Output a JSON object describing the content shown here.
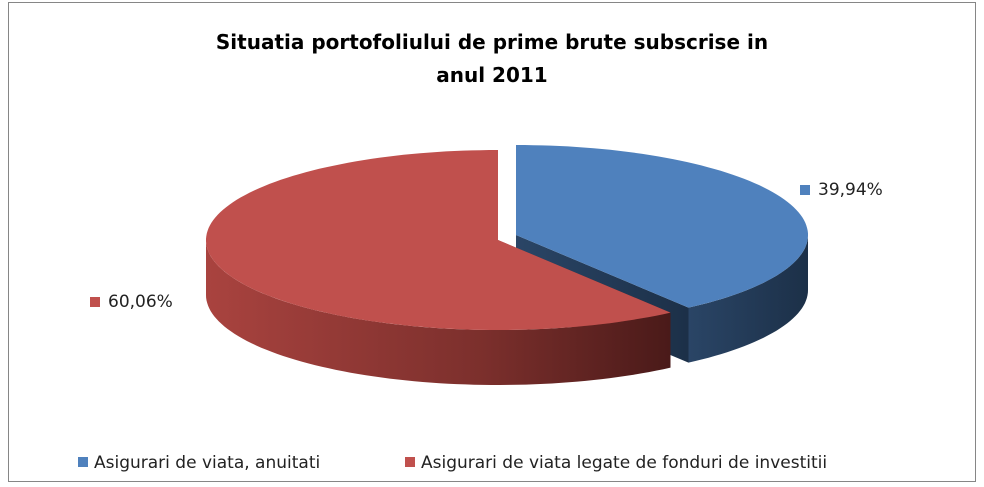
{
  "chart_data": {
    "type": "pie3d",
    "title": "Situatia portofoliului de prime brute subscrise in anul 2011",
    "categories": [
      "Asigurari de viata, anuitati",
      "Asigurari de viata legate de fonduri de investitii"
    ],
    "values": [
      39.94,
      60.06
    ],
    "value_labels": [
      "39,94%",
      "60,06%"
    ],
    "colors": [
      "#4f81bd",
      "#c0504d"
    ],
    "legend": "bottom"
  }
}
